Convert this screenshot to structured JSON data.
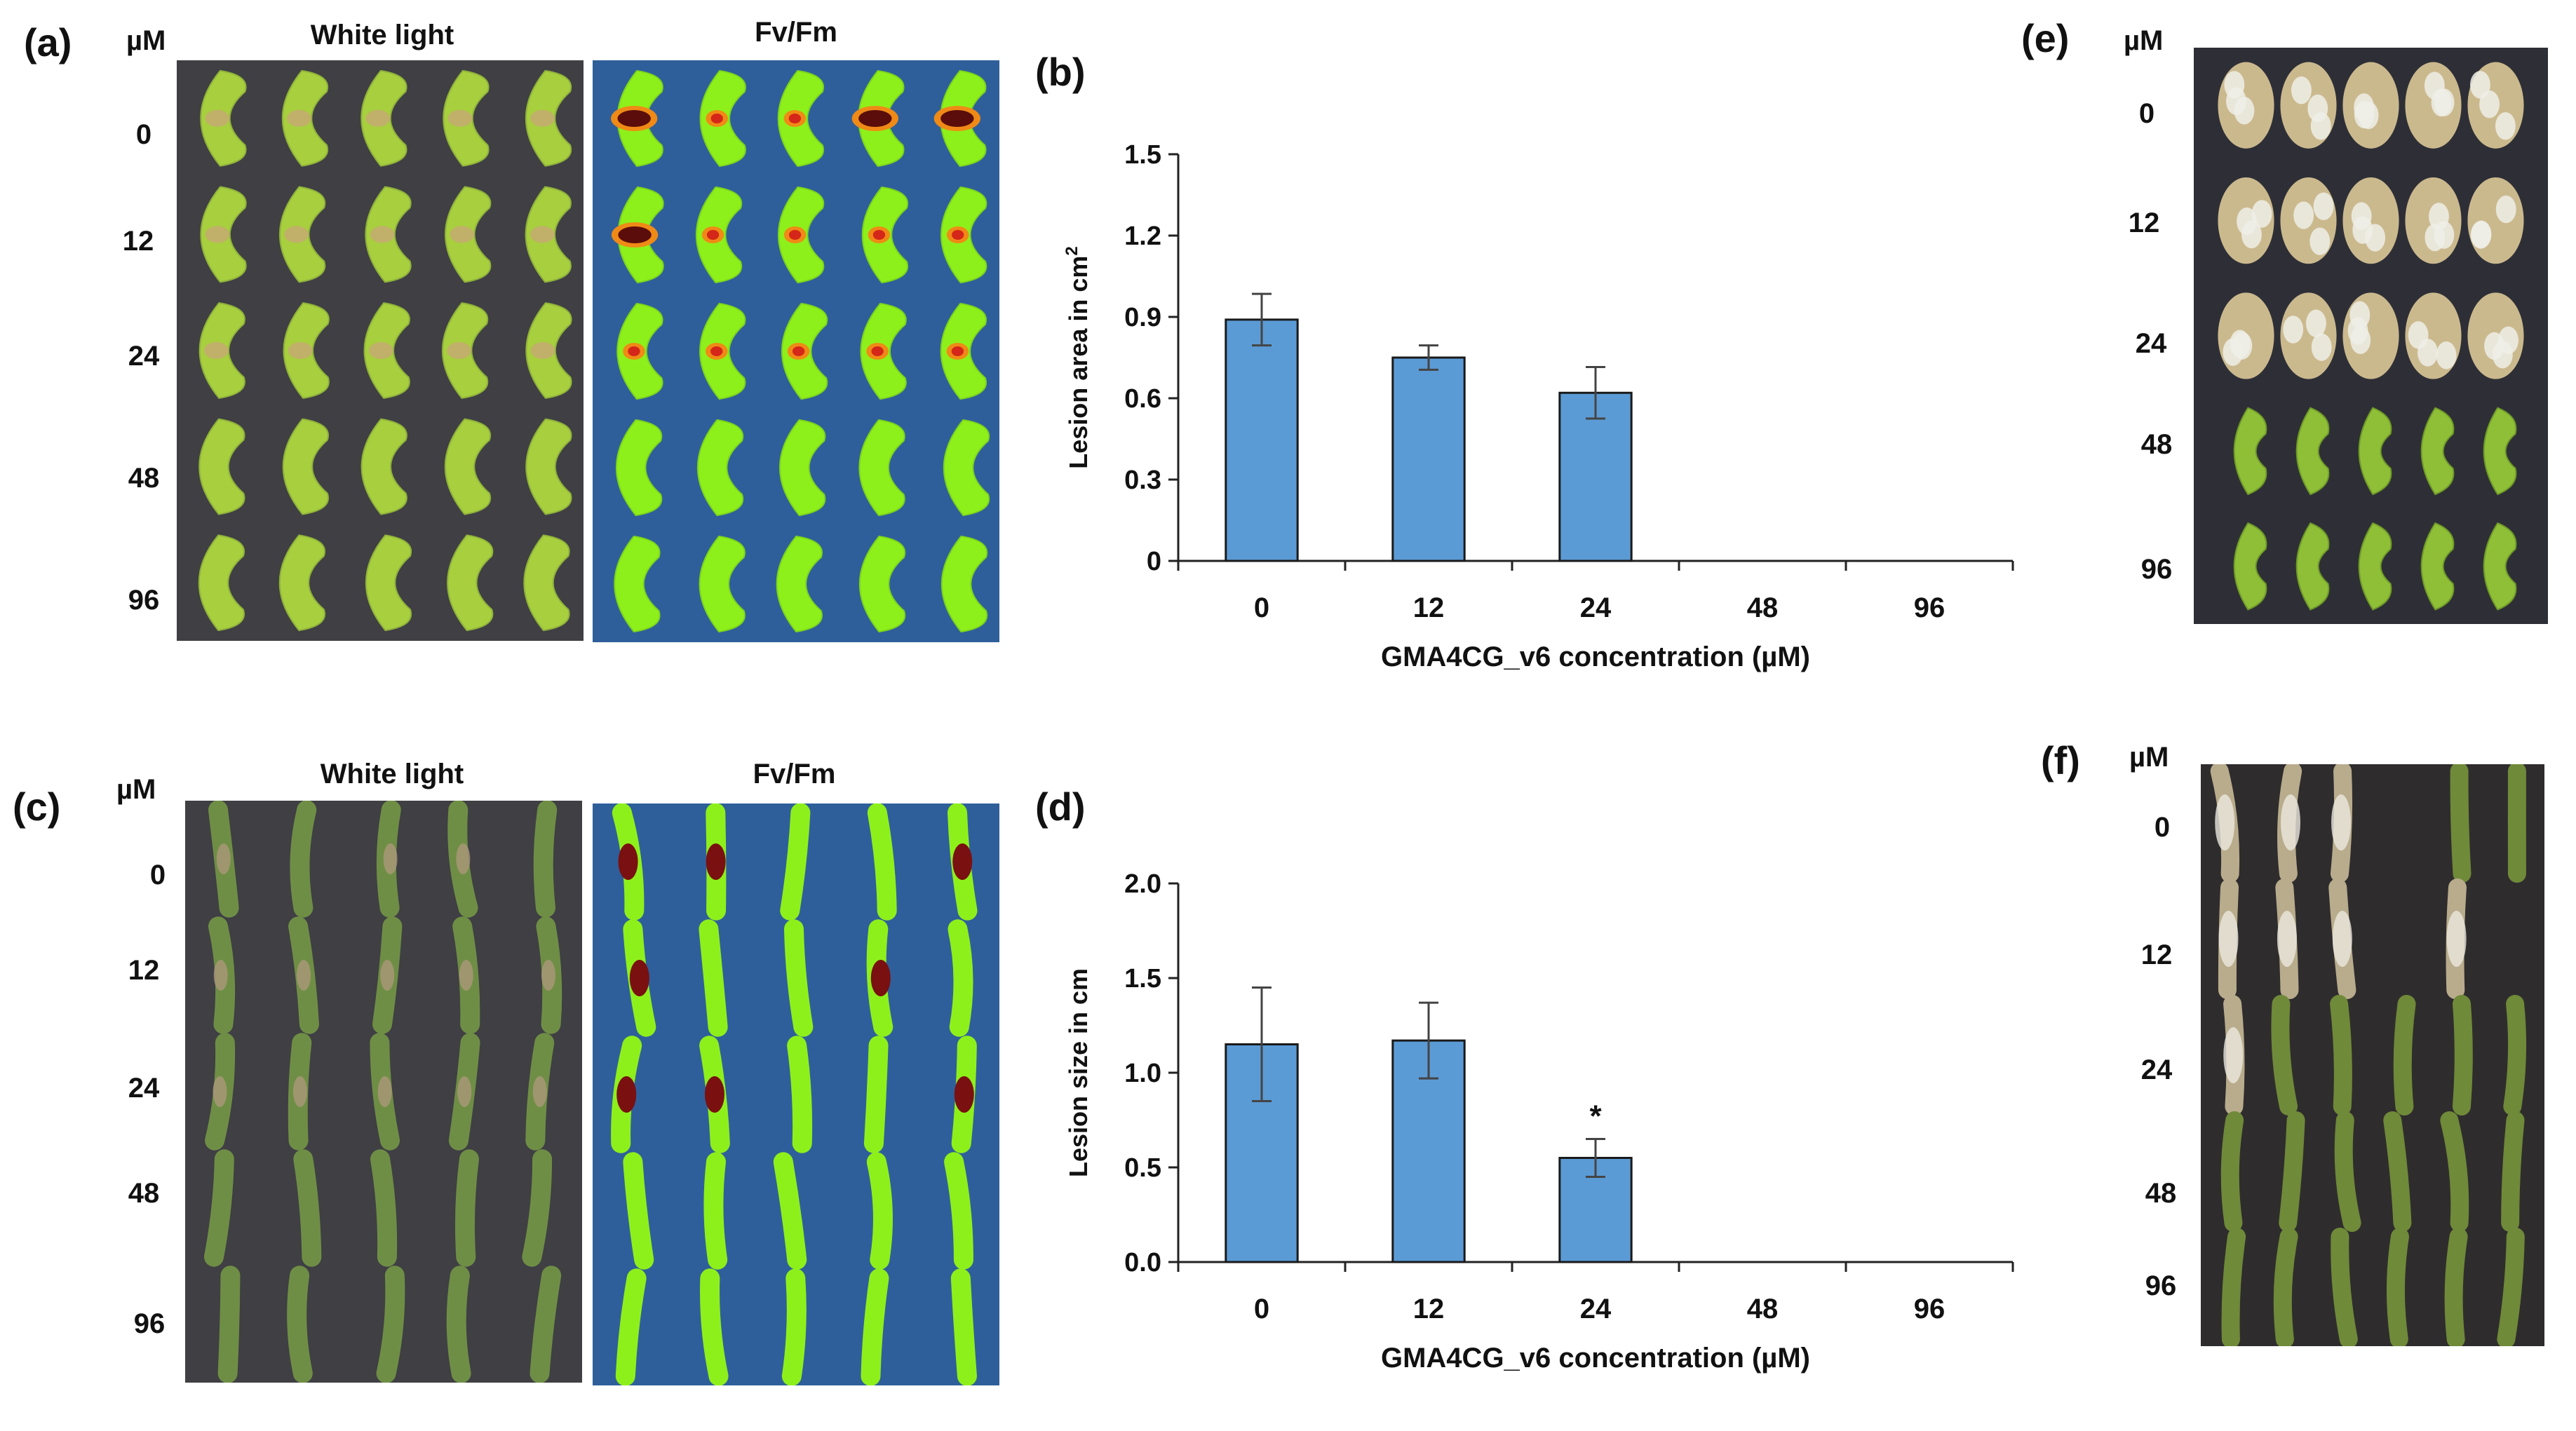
{
  "colors": {
    "photo_dark": "#3f3f44",
    "fvfm_bg": "#2f5f9a",
    "leaf": "#a7cf3e",
    "stem": "#6f8e45",
    "fvfm_leaf": "#8ef01a",
    "bar": "#5b9bd5",
    "bar_stroke": "#1a1a1a",
    "fungus": "#cbb98e"
  },
  "panels": {
    "a": {
      "letter": "(a)",
      "unit": "µM",
      "white_title": "White light",
      "fvfm_title": "Fv/Fm",
      "rows": [
        "0",
        "12",
        "24",
        "48",
        "96"
      ]
    },
    "c": {
      "letter": "(c)",
      "unit": "µM",
      "white_title": "White light",
      "fvfm_title": "Fv/Fm",
      "rows": [
        "0",
        "12",
        "24",
        "48",
        "96"
      ]
    },
    "e": {
      "letter": "(e)",
      "unit": "µM",
      "rows": [
        "0",
        "12",
        "24",
        "48",
        "96"
      ]
    },
    "f": {
      "letter": "(f)",
      "unit": "µM",
      "rows": [
        "0",
        "12",
        "24",
        "48",
        "96"
      ]
    }
  },
  "chart_data": [
    {
      "panel": "(b)",
      "type": "bar",
      "categories": [
        "0",
        "12",
        "24",
        "48",
        "96"
      ],
      "values": [
        0.89,
        0.75,
        0.62,
        0,
        0
      ],
      "errors": [
        0.095,
        0.045,
        0.095,
        0,
        0
      ],
      "ylabel": "Lesion area in cm",
      "ylabel_sup": "2",
      "xlabel": "GMA4CG_v6  concentration (µM)",
      "ylim": [
        0,
        1.5
      ],
      "yticks": [
        "0",
        "0.3",
        "0.6",
        "0.9",
        "1.2",
        "1.5"
      ],
      "ytick_values": [
        0,
        0.3,
        0.6,
        0.9,
        1.2,
        1.5
      ],
      "annotations": []
    },
    {
      "panel": "(d)",
      "type": "bar",
      "categories": [
        "0",
        "12",
        "24",
        "48",
        "96"
      ],
      "values": [
        1.15,
        1.17,
        0.55,
        0,
        0
      ],
      "errors": [
        0.3,
        0.2,
        0.1,
        0,
        0
      ],
      "ylabel": "Lesion size in cm",
      "ylabel_sup": "",
      "xlabel": "GMA4CG_v6  concentration (µM)",
      "ylim": [
        0,
        2.0
      ],
      "yticks": [
        "0.0",
        "0.5",
        "1.0",
        "1.5",
        "2.0"
      ],
      "ytick_values": [
        0,
        0.5,
        1.0,
        1.5,
        2.0
      ],
      "annotations": [
        "",
        "",
        "*",
        "",
        ""
      ]
    }
  ]
}
